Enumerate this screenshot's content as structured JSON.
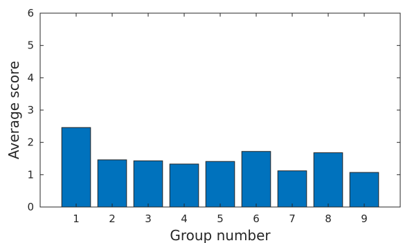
{
  "chart_data": {
    "type": "bar",
    "categories": [
      "1",
      "2",
      "3",
      "4",
      "5",
      "6",
      "7",
      "8",
      "9"
    ],
    "values": [
      2.46,
      1.46,
      1.43,
      1.33,
      1.41,
      1.72,
      1.12,
      1.68,
      1.07
    ],
    "title": "",
    "xlabel": "Group number",
    "ylabel": "Average score",
    "ylim": [
      0,
      6
    ],
    "yticks": [
      "0",
      "1",
      "2",
      "3",
      "4",
      "5",
      "6"
    ],
    "xlim": [
      0,
      10
    ],
    "grid": false,
    "bar_color": "#0072BD",
    "bar_edge_color": "#262626",
    "axis_color": "#262626"
  }
}
